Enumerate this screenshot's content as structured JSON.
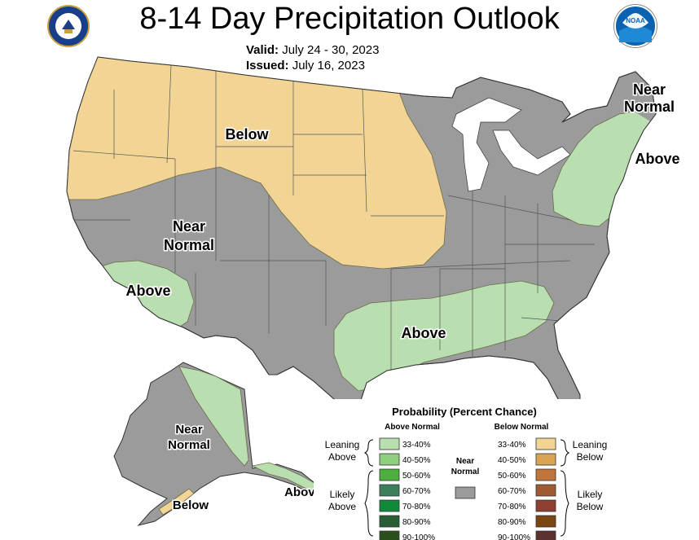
{
  "header": {
    "title": "8-14 Day Precipitation Outlook",
    "valid_label": "Valid:",
    "valid_value": "July 24 - 30, 2023",
    "issued_label": "Issued:",
    "issued_value": "July 16, 2023",
    "left_seal_icon": "department-of-commerce-seal-icon",
    "right_logo_icon": "noaa-logo-icon",
    "noaa_logo_text": "NOAA"
  },
  "colors": {
    "near_normal": "#9b9b9b",
    "above_33_40": "#b9dfb1",
    "above_40_50": "#8fcf7f",
    "above_50_60": "#4caf3e",
    "above_60_70": "#3d7f5b",
    "above_70_80": "#0e8a3a",
    "above_80_90": "#275e35",
    "above_90_100": "#2b4f1c",
    "below_33_40": "#f2d494",
    "below_40_50": "#d9a555",
    "below_50_60": "#c0763a",
    "below_60_70": "#9e5a33",
    "below_70_80": "#8e3f32",
    "below_80_90": "#7a4612",
    "below_90_100": "#5b3232"
  },
  "map_labels": {
    "northwest": "Below",
    "west": [
      "Near",
      "Normal"
    ],
    "california": "Above",
    "south": "Above",
    "northeast_near": [
      "Near",
      "Normal"
    ],
    "northeast_above": "Above",
    "alaska_near": [
      "Near",
      "Normal"
    ],
    "alaska_panhandle": "Above",
    "alaska_peninsula": "Below"
  },
  "legend": {
    "title": "Probability (Percent Chance)",
    "above_header": "Above Normal",
    "below_header": "Below Normal",
    "near_label": [
      "Near",
      "Normal"
    ],
    "leaning_above": [
      "Leaning",
      "Above"
    ],
    "likely_above": [
      "Likely",
      "Above"
    ],
    "leaning_below": [
      "Leaning",
      "Below"
    ],
    "likely_below": [
      "Likely",
      "Below"
    ],
    "above_ranges": [
      "33-40%",
      "40-50%",
      "50-60%",
      "60-70%",
      "70-80%",
      "80-90%",
      "90-100%"
    ],
    "below_ranges": [
      "33-40%",
      "40-50%",
      "50-60%",
      "60-70%",
      "70-80%",
      "80-90%",
      "90-100%"
    ]
  }
}
